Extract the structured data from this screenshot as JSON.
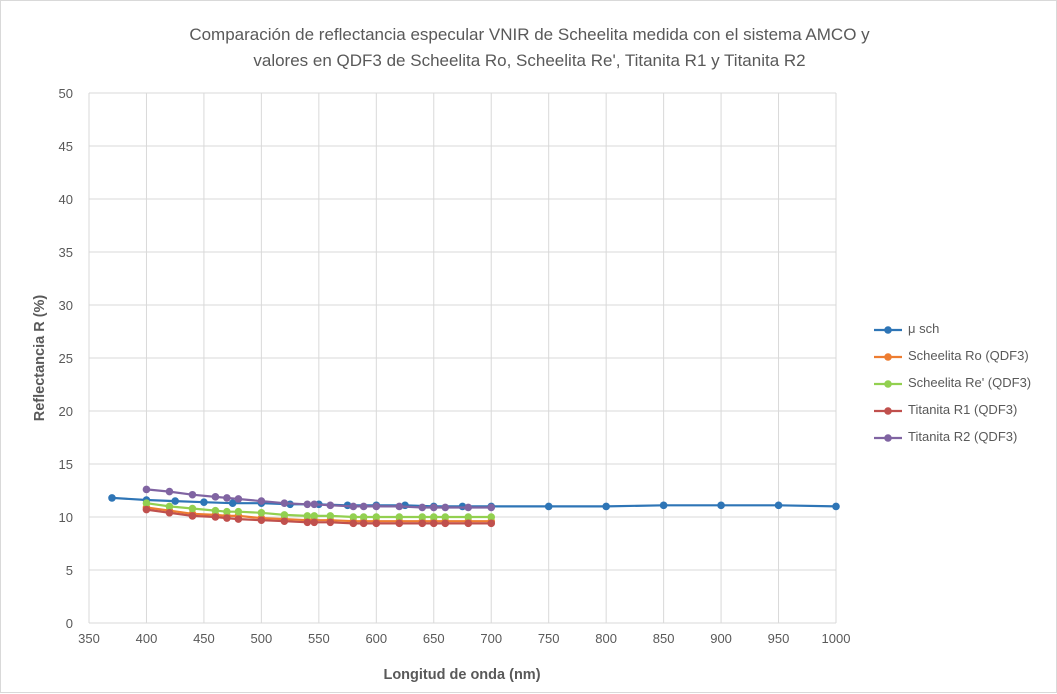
{
  "chart_data": {
    "type": "line",
    "title_lines": [
      "Comparación de reflectancia especular VNIR de Scheelita medida con el sistema AMCO y",
      "valores en QDF3  de Scheelita Ro, Scheelita Re', Titanita R1 y Titanita R2"
    ],
    "xlabel": "Longitud de onda (nm)",
    "ylabel": "Reflectancia R (%)",
    "xlim": [
      350,
      1000
    ],
    "ylim": [
      0,
      50
    ],
    "xticks": [
      "350",
      "400",
      "450",
      "500",
      "550",
      "600",
      "650",
      "700",
      "750",
      "800",
      "850",
      "900",
      "950",
      "1000"
    ],
    "yticks": [
      "0",
      "5",
      "10",
      "15",
      "20",
      "25",
      "30",
      "35",
      "40",
      "45",
      "50"
    ],
    "grid": true,
    "legend_position": "right",
    "series": [
      {
        "name": "μ sch",
        "color": "#2e75b6",
        "x": [
          370,
          400,
          425,
          450,
          475,
          500,
          525,
          550,
          575,
          600,
          625,
          650,
          675,
          700,
          750,
          800,
          850,
          900,
          950,
          1000
        ],
        "y": [
          11.8,
          11.6,
          11.5,
          11.4,
          11.3,
          11.3,
          11.2,
          11.2,
          11.1,
          11.1,
          11.1,
          11.0,
          11.0,
          11.0,
          11.0,
          11.0,
          11.1,
          11.1,
          11.1,
          11.0
        ]
      },
      {
        "name": "Scheelita Ro (QDF3)",
        "color": "#ed7d31",
        "x": [
          400,
          420,
          440,
          460,
          470,
          480,
          500,
          520,
          540,
          546,
          560,
          580,
          589,
          600,
          620,
          640,
          650,
          660,
          680,
          700
        ],
        "y": [
          10.9,
          10.6,
          10.3,
          10.2,
          10.1,
          10.1,
          9.9,
          9.8,
          9.7,
          9.7,
          9.7,
          9.6,
          9.6,
          9.6,
          9.6,
          9.6,
          9.6,
          9.6,
          9.6,
          9.6
        ]
      },
      {
        "name": "Scheelita Re' (QDF3)",
        "color": "#92d050",
        "x": [
          400,
          420,
          440,
          460,
          470,
          480,
          500,
          520,
          540,
          546,
          560,
          580,
          589,
          600,
          620,
          640,
          650,
          660,
          680,
          700
        ],
        "y": [
          11.3,
          11.0,
          10.8,
          10.6,
          10.5,
          10.5,
          10.4,
          10.2,
          10.1,
          10.1,
          10.1,
          10.0,
          10.0,
          10.0,
          10.0,
          10.0,
          10.0,
          10.0,
          10.0,
          10.0
        ]
      },
      {
        "name": "Titanita R1 (QDF3)",
        "color": "#c0504d",
        "x": [
          400,
          420,
          440,
          460,
          470,
          480,
          500,
          520,
          540,
          546,
          560,
          580,
          589,
          600,
          620,
          640,
          650,
          660,
          680,
          700
        ],
        "y": [
          10.7,
          10.4,
          10.1,
          10.0,
          9.9,
          9.8,
          9.7,
          9.6,
          9.5,
          9.5,
          9.5,
          9.4,
          9.4,
          9.4,
          9.4,
          9.4,
          9.4,
          9.4,
          9.4,
          9.4
        ]
      },
      {
        "name": "Titanita R2 (QDF3)",
        "color": "#8064a2",
        "x": [
          400,
          420,
          440,
          460,
          470,
          480,
          500,
          520,
          540,
          546,
          560,
          580,
          589,
          600,
          620,
          640,
          650,
          660,
          680,
          700
        ],
        "y": [
          12.6,
          12.4,
          12.1,
          11.9,
          11.8,
          11.7,
          11.5,
          11.3,
          11.2,
          11.2,
          11.1,
          11.0,
          11.0,
          11.0,
          11.0,
          10.9,
          10.9,
          10.9,
          10.9,
          10.9
        ]
      }
    ]
  }
}
